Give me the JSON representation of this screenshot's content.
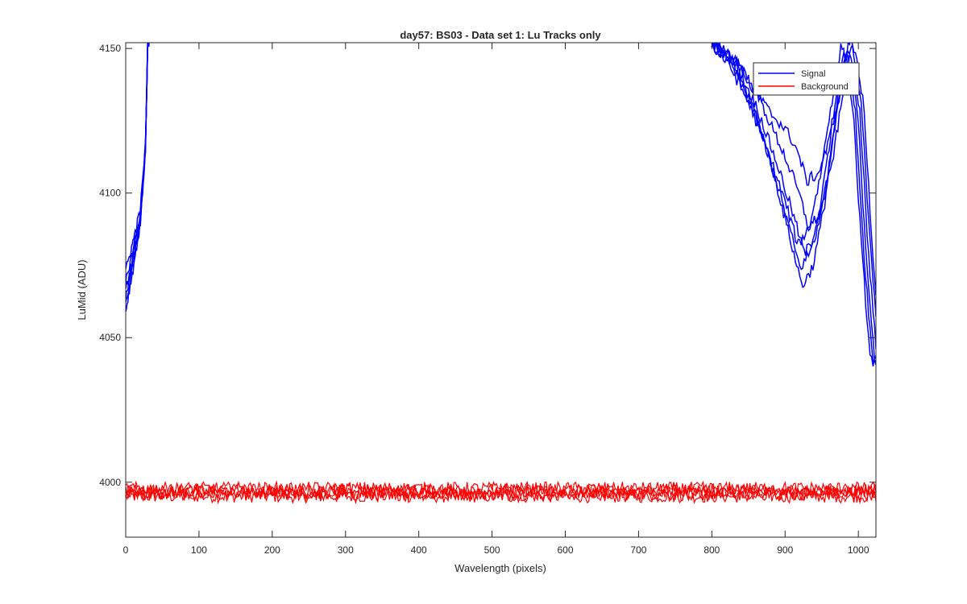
{
  "chart_data": {
    "type": "line",
    "title": "day57: BS03 - Data set 1: Lu Tracks only",
    "xlabel": "Wavelength (pixels)",
    "ylabel": "LuMid (ADU)",
    "xlim": [
      0,
      1024
    ],
    "ylim": [
      3981,
      4152
    ],
    "xticks": [
      0,
      100,
      200,
      300,
      400,
      500,
      600,
      700,
      800,
      900,
      1000
    ],
    "yticks": [
      4000,
      4050,
      4100,
      4150
    ],
    "grid": false,
    "legend": {
      "position": "top-right",
      "entries": [
        "Signal",
        "Background"
      ]
    },
    "colors": {
      "signal": "#0000ff",
      "background": "#ff0000",
      "axis": "#262626"
    },
    "series": [
      {
        "name": "Signal",
        "color": "#0000ff",
        "description_points": [
          [
            0,
            4061
          ],
          [
            10,
            4075
          ],
          [
            20,
            4090
          ],
          [
            27,
            4115
          ],
          [
            30,
            4152
          ]
        ],
        "right_profile": [
          [
            800,
            4152
          ],
          [
            830,
            4145
          ],
          [
            860,
            4130
          ],
          [
            890,
            4110
          ],
          [
            910,
            4095
          ],
          [
            925,
            4082
          ],
          [
            940,
            4088
          ],
          [
            955,
            4105
          ],
          [
            970,
            4130
          ],
          [
            985,
            4152
          ],
          [
            1000,
            4130
          ],
          [
            1012,
            4080
          ],
          [
            1024,
            4042
          ]
        ],
        "trace_count": 6
      },
      {
        "name": "Background",
        "color": "#ff0000",
        "mean": 3996.5,
        "noise_amplitude": 2.2,
        "trace_count": 5
      }
    ]
  }
}
